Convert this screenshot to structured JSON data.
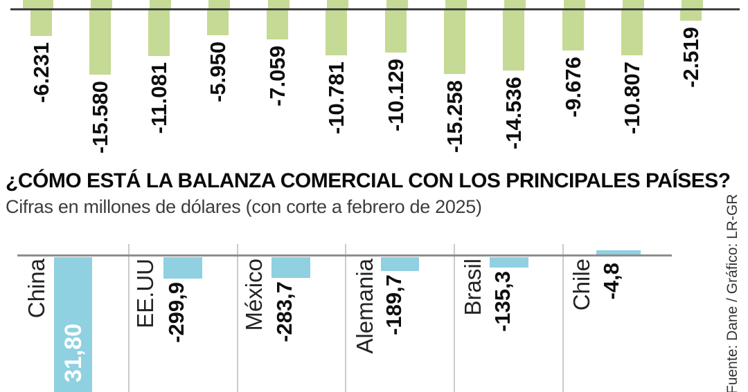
{
  "title": "¿CÓMO ESTÁ LA BALANZA COMERCIAL CON LOS PRINCIPALES PAÍSES?",
  "subtitle": "Cifras en millones de dólares (con corte a febrero de 2025)",
  "source": "Fuente: Dane / Gráfico: LR-GR",
  "colors": {
    "green_bar": "#c5da94",
    "blue_bar": "#8fd0e1",
    "top_baseline": "#3e3e3e",
    "bottom_baseline": "#8d8d8d",
    "divider": "#cbcbcb",
    "label_text": "#0d0d0d",
    "inbar_text": "#ffffff"
  },
  "chart_data": [
    {
      "type": "bar",
      "id": "yearly-balance",
      "title": "",
      "note": "Upper chart strip: green bars hang below a baseline; category labels are cropped out of frame. Small green bar remnants from a cropped chart row are visible above the baseline.",
      "unit": "millones de dólares",
      "value_labels": [
        "-6.231",
        "-15.580",
        "-11.081",
        "-5.950",
        "-7.059",
        "-10.781",
        "-10.129",
        "-15.258",
        "-14.536",
        "-9.676",
        "-10.807",
        "-2.519"
      ],
      "values": [
        -6231,
        -15580,
        -11081,
        -5950,
        -7059,
        -10781,
        -10129,
        -15258,
        -14536,
        -9676,
        -10807,
        -2519
      ],
      "ylim": [
        -16000,
        0
      ],
      "grid": false,
      "legend": false
    },
    {
      "type": "bar",
      "id": "country-balance",
      "title": "¿CÓMO ESTÁ LA BALANZA COMERCIAL CON LOS PRINCIPALES PAÍSES?",
      "subtitle": "Cifras en millones de dólares (con corte a febrero de 2025)",
      "categories": [
        "China",
        "EE.UU",
        "México",
        "Alemania",
        "Brasil",
        "Chile"
      ],
      "value_labels": [
        "31,80",
        "-299,9",
        "-283,7",
        "-189,7",
        "-135,3",
        "-4,8"
      ],
      "values": [
        null,
        -299.9,
        -283.7,
        -189.7,
        -135.3,
        -4.8
      ],
      "note": "China bar extends past the bottom edge; its white value label is clipped (only '31,80' visible).",
      "grid": false,
      "legend": false
    }
  ]
}
